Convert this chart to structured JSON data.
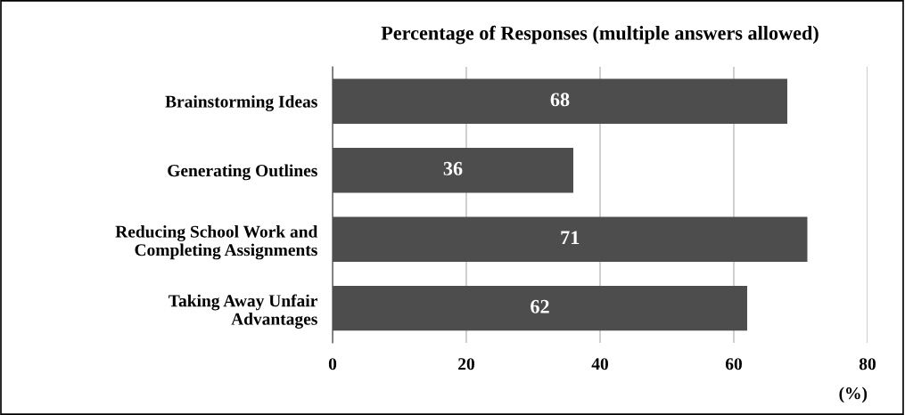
{
  "chart_data": {
    "type": "bar",
    "orientation": "horizontal",
    "title": "Percentage of Responses (multiple answers allowed)",
    "xlabel": "(%)",
    "categories": [
      "Brainstorming Ideas",
      "Generating Outlines",
      "Reducing School Work and\nCompleting Assignments",
      "Taking Away Unfair\nAdvantages"
    ],
    "values": [
      68,
      36,
      71,
      62
    ],
    "color": "#4d4d4d",
    "data_labels": true,
    "xlim": [
      0,
      80
    ],
    "xticks": [
      0,
      20,
      40,
      60,
      80
    ],
    "grid": "x",
    "legend": false
  }
}
